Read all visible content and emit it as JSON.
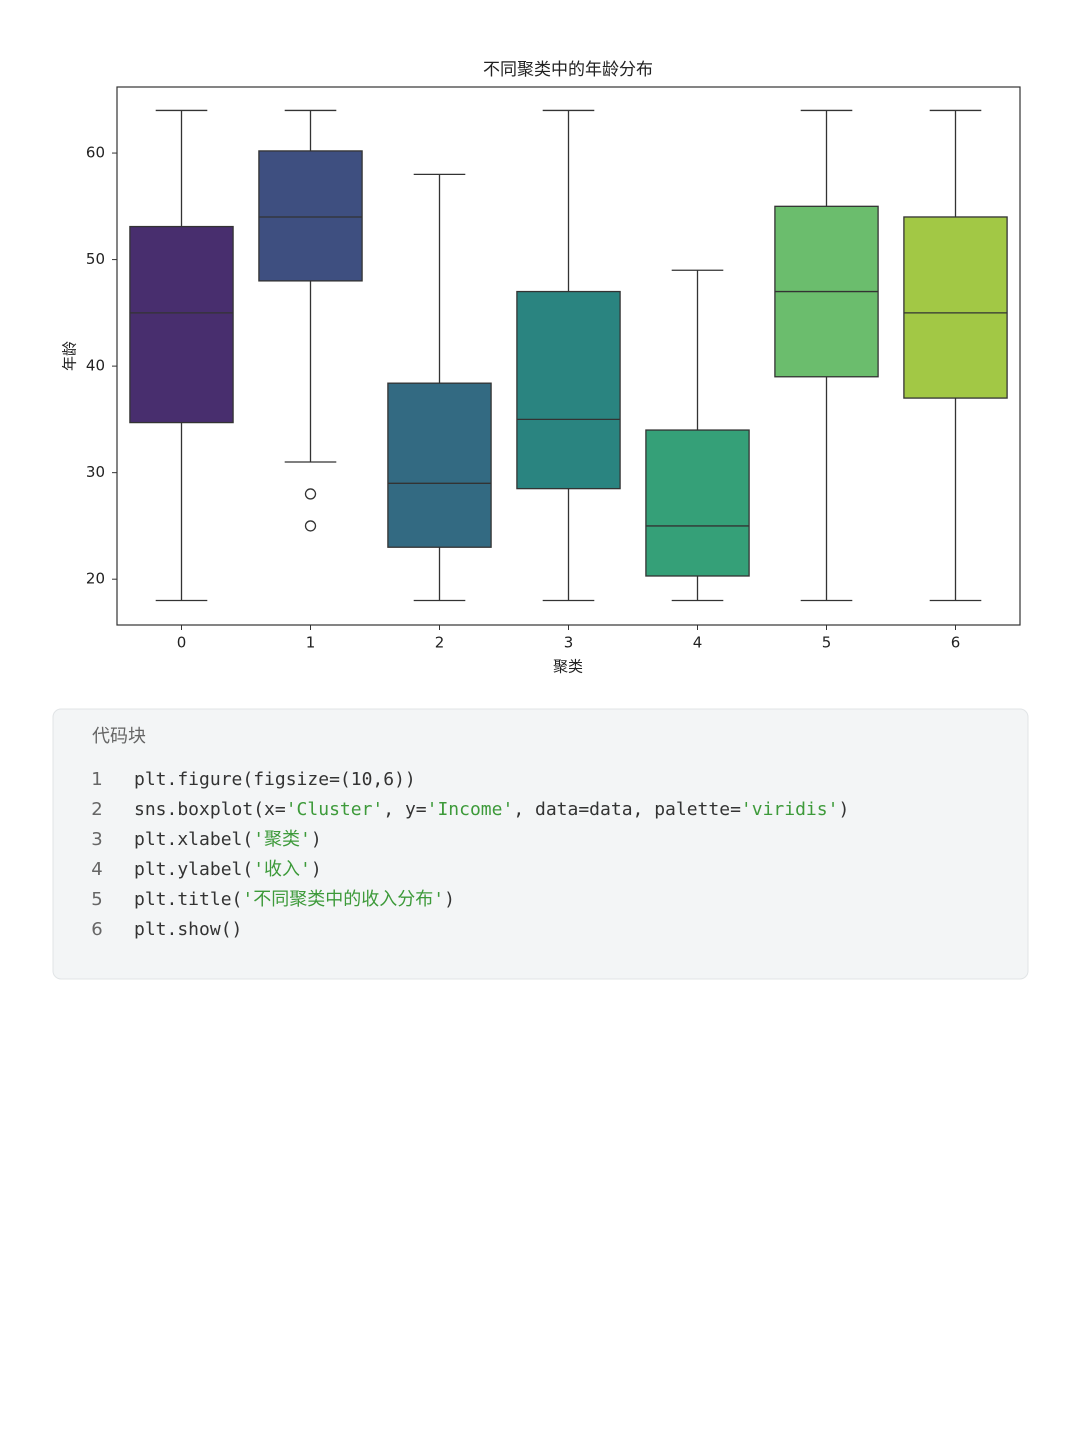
{
  "chart_data": {
    "type": "box",
    "title": "不同聚类中的年龄分布",
    "xlabel": "聚类",
    "ylabel": "年龄",
    "categories": [
      "0",
      "1",
      "2",
      "3",
      "4",
      "5",
      "6"
    ],
    "whisker_low": [
      18,
      31,
      18,
      18,
      18,
      18,
      18
    ],
    "q1": [
      34.7,
      48,
      23,
      28.5,
      20.3,
      39,
      37
    ],
    "median": [
      45,
      54,
      29,
      35,
      25,
      47,
      45
    ],
    "q3": [
      53.1,
      60.2,
      38.4,
      47,
      34,
      55,
      54
    ],
    "whisker_high": [
      64,
      64,
      58,
      64,
      49,
      64,
      64
    ],
    "outliers": [
      [],
      [
        28,
        25
      ],
      [],
      [],
      [],
      [],
      []
    ],
    "colors": [
      "#482e6e",
      "#3e4f80",
      "#336a82",
      "#2a8480",
      "#35a078",
      "#6bbd6d",
      "#a2c845"
    ],
    "ylim": [
      15.7,
      66.2
    ],
    "yticks": [
      20,
      30,
      40,
      50,
      60
    ]
  },
  "code_block": {
    "title": "代码块",
    "line_numbers": [
      1,
      2,
      3,
      4,
      5,
      6
    ],
    "lines": [
      [
        "plt.figure(figsize=(10,6))"
      ],
      [
        "sns.boxplot(x=",
        "'Cluster'",
        ", y=",
        "'Income'",
        ", data=data, palette=",
        "'viridis'",
        ")"
      ],
      [
        "plt.xlabel(",
        "'聚类'",
        ")"
      ],
      [
        "plt.ylabel(",
        "'收入'",
        ")"
      ],
      [
        "plt.title(",
        "'不同聚类中的收入分布'",
        ")"
      ],
      [
        "plt.show()"
      ]
    ]
  }
}
